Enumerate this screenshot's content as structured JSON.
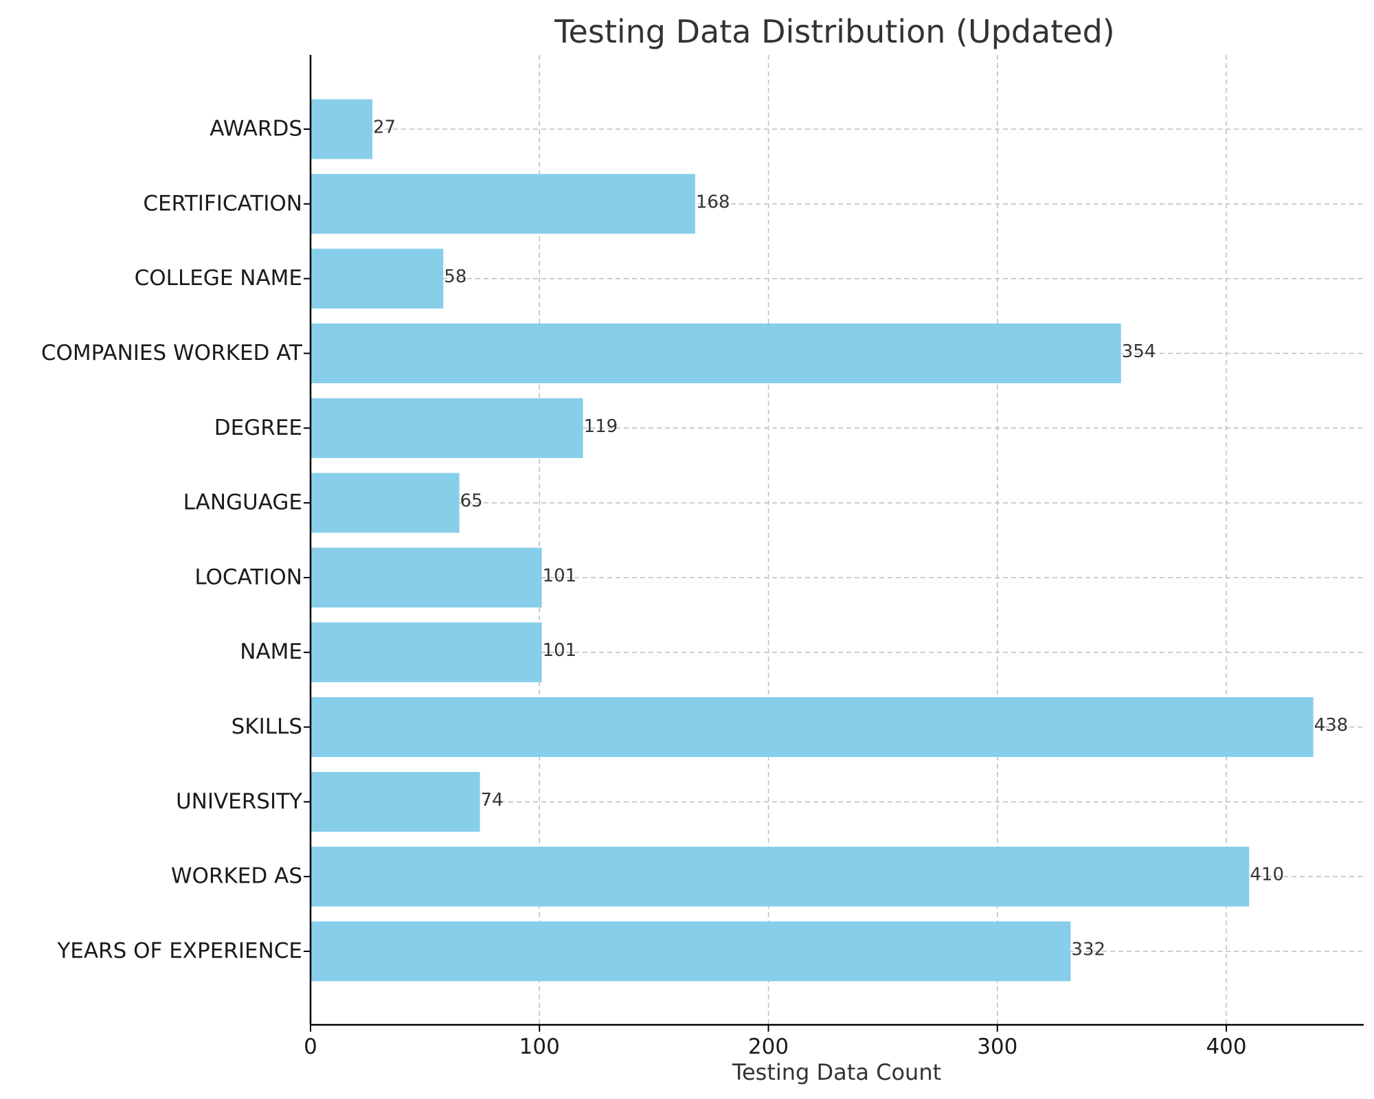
{
  "chart_data": {
    "type": "bar",
    "orientation": "horizontal",
    "title": "Testing Data Distribution (Updated)",
    "xlabel": "Testing Data Count",
    "ylabel": "",
    "categories": [
      "AWARDS",
      "CERTIFICATION",
      "COLLEGE NAME",
      "COMPANIES WORKED AT",
      "DEGREE",
      "LANGUAGE",
      "LOCATION",
      "NAME",
      "SKILLS",
      "UNIVERSITY",
      "WORKED AS",
      "YEARS OF EXPERIENCE"
    ],
    "values": [
      27,
      168,
      58,
      354,
      119,
      65,
      101,
      101,
      438,
      74,
      410,
      332
    ],
    "data_labels": [
      "27",
      "168",
      "58",
      "354",
      "119",
      "65",
      "101",
      "101",
      "438",
      "74",
      "410",
      "332"
    ],
    "xlim": [
      0,
      460
    ],
    "xticks": [
      0,
      100,
      200,
      300,
      400
    ],
    "xtick_labels": [
      "0",
      "100",
      "200",
      "300",
      "400"
    ],
    "grid": true,
    "bar_color": "#87ceeb"
  }
}
